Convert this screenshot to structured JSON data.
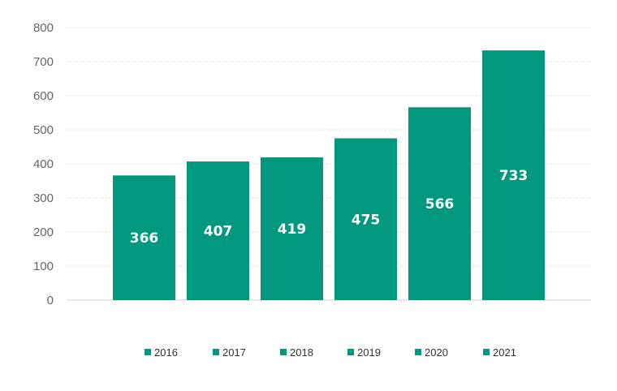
{
  "chart_data": {
    "type": "bar",
    "categories": [
      "2016",
      "2017",
      "2018",
      "2019",
      "2020",
      "2021"
    ],
    "values": [
      366,
      407,
      419,
      475,
      566,
      733
    ],
    "data_labels": [
      "366",
      "407",
      "419",
      "475",
      "566",
      "733"
    ],
    "title": "",
    "xlabel": "",
    "ylabel": "",
    "ylim": [
      0,
      800
    ],
    "yticks": [
      0,
      100,
      200,
      300,
      400,
      500,
      600,
      700,
      800
    ],
    "ytick_labels": [
      "0",
      "100",
      "200",
      "300",
      "400",
      "500",
      "600",
      "700",
      "800"
    ],
    "grid": true,
    "legend": {
      "placement": "bottom",
      "entries": [
        "2016",
        "2017",
        "2018",
        "2019",
        "2020",
        "2021"
      ]
    },
    "colors": {
      "bar": "#009980",
      "grid": "#d9d9d9",
      "tick_text": "#666666",
      "data_label": "#ffffff"
    }
  }
}
